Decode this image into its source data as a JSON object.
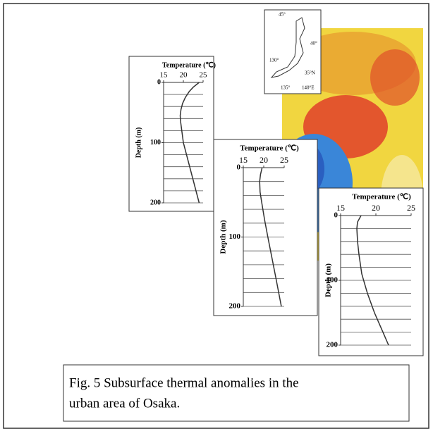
{
  "chart_data": [
    {
      "type": "line",
      "title": "Temperature (℃)",
      "y_label": "Depth (m)",
      "series": [
        {
          "x": [
            24,
            22.5,
            21.5,
            20.5,
            19.8,
            19.4,
            19.2,
            19.3,
            19.6,
            20,
            21,
            22,
            23,
            24
          ],
          "values": [
            0,
            8,
            15,
            25,
            35,
            45,
            55,
            65,
            80,
            100,
            125,
            150,
            175,
            200
          ],
          "color": "#333333"
        }
      ],
      "xlim": [
        15,
        25
      ],
      "xticks": [
        15,
        20,
        25
      ],
      "ylim": [
        0,
        200
      ],
      "yticks": [
        0,
        100,
        200
      ],
      "ygrid": [
        0,
        20,
        40,
        60,
        80,
        100,
        120,
        140,
        160,
        180,
        200
      ]
    },
    {
      "type": "line",
      "title": "Temperature (℃)",
      "y_label": "Depth (m)",
      "series": [
        {
          "x": [
            19.6,
            19.2,
            19,
            19.1,
            19.5,
            20.2,
            21,
            22,
            23,
            24.3
          ],
          "values": [
            0,
            10,
            20,
            35,
            50,
            75,
            100,
            130,
            160,
            200
          ],
          "color": "#333333"
        }
      ],
      "xlim": [
        15,
        25
      ],
      "xticks": [
        15,
        20,
        25
      ],
      "ylim": [
        0,
        200
      ],
      "yticks": [
        0,
        100,
        200
      ],
      "ygrid": [
        0,
        20,
        40,
        60,
        80,
        100,
        120,
        140,
        160,
        180,
        200
      ]
    },
    {
      "type": "line",
      "title": "Temperature (℃)",
      "y_label": "Depth (m)",
      "series": [
        {
          "x": [
            17.9,
            17.4,
            17.3,
            17.4,
            17.6,
            18,
            18.8,
            19.8,
            21,
            21.8
          ],
          "values": [
            0,
            10,
            20,
            40,
            60,
            90,
            120,
            150,
            180,
            200
          ],
          "color": "#333333"
        }
      ],
      "xlim": [
        15,
        25
      ],
      "xticks": [
        15,
        20,
        25
      ],
      "ylim": [
        0,
        200
      ],
      "yticks": [
        0,
        100,
        200
      ],
      "ygrid": [
        0,
        20,
        40,
        60,
        80,
        100,
        120,
        140,
        160,
        180,
        200
      ]
    }
  ],
  "inset_map": {
    "labels": [
      "45°",
      "40°",
      "130°",
      "35°N",
      "135°",
      "140°E"
    ]
  },
  "caption": {
    "lines": [
      "Fig. 5 Subsurface thermal anomalies in the",
      "urban area of Osaka."
    ]
  }
}
